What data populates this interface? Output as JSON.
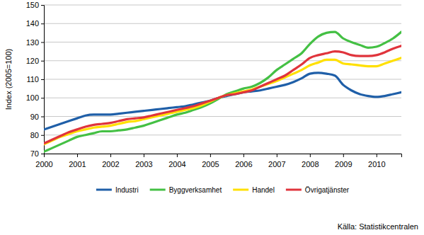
{
  "chart_data": {
    "type": "line",
    "y_label": "Index (2005=100)",
    "source": "Källa: Statistikcentralen",
    "x": [
      2000,
      2000.25,
      2000.5,
      2000.75,
      2001,
      2001.25,
      2001.5,
      2001.75,
      2002,
      2002.25,
      2002.5,
      2002.75,
      2003,
      2003.25,
      2003.5,
      2003.75,
      2004,
      2004.25,
      2004.5,
      2004.75,
      2005,
      2005.25,
      2005.5,
      2005.75,
      2006,
      2006.25,
      2006.5,
      2006.75,
      2007,
      2007.25,
      2007.5,
      2007.75,
      2008,
      2008.25,
      2008.5,
      2008.75,
      2009,
      2009.25,
      2009.5,
      2009.75,
      2010,
      2010.25,
      2010.5,
      2010.75
    ],
    "series": [
      {
        "name": "Industri",
        "color": "#1f5fa8",
        "values": [
          83,
          84.5,
          86,
          87.5,
          89,
          90.5,
          91,
          91,
          91,
          91.5,
          92,
          92.5,
          93,
          93.5,
          94,
          94.5,
          95,
          95.5,
          96.5,
          97.5,
          98.5,
          100,
          101,
          102,
          103,
          103.5,
          104,
          105,
          106,
          107,
          108.5,
          110.5,
          113,
          113.5,
          113,
          112,
          107,
          104,
          102,
          101,
          100.5,
          101,
          102,
          103
        ]
      },
      {
        "name": "Byggverksamhet",
        "color": "#44c044",
        "values": [
          71,
          73,
          75,
          77,
          79,
          80,
          81,
          82,
          82,
          82.5,
          83,
          84,
          85,
          86.5,
          88,
          89.5,
          91,
          92,
          93.5,
          95,
          97,
          99.5,
          102,
          103.5,
          105,
          106,
          108,
          111,
          115,
          118,
          121,
          124,
          129,
          133,
          135,
          135.5,
          132,
          130,
          128.5,
          127,
          127.5,
          129.5,
          132,
          135.5
        ]
      },
      {
        "name": "Handel",
        "color": "#ffe000",
        "values": [
          75,
          77,
          79,
          80.5,
          82,
          83,
          84,
          84.5,
          85,
          86,
          87,
          87.5,
          88.5,
          89.5,
          90.5,
          91.5,
          92.5,
          93.5,
          94.5,
          96,
          98,
          100,
          101.5,
          102.5,
          103.5,
          104.5,
          106,
          107.5,
          109,
          111,
          113,
          115,
          117.5,
          119,
          120.5,
          120.5,
          118.5,
          118,
          117.5,
          117,
          117,
          118.5,
          120,
          121.5
        ]
      },
      {
        "name": "Övrigatjänster",
        "color": "#e0343c",
        "values": [
          75.5,
          77.5,
          79.5,
          81.5,
          83,
          84.5,
          85.5,
          86,
          86.5,
          87.5,
          88.5,
          89,
          89.5,
          90.5,
          91.5,
          92.5,
          93.5,
          94.5,
          95.5,
          97,
          98.5,
          100,
          101.5,
          102,
          103,
          104,
          106,
          108,
          110,
          112,
          115,
          118,
          121.5,
          123,
          124,
          125,
          124.5,
          123,
          122.5,
          122.5,
          123,
          124.5,
          126.5,
          128
        ]
      }
    ],
    "xlim": [
      2000,
      2010.75
    ],
    "xticks": [
      2000,
      2001,
      2002,
      2003,
      2004,
      2005,
      2006,
      2007,
      2008,
      2009,
      2010
    ],
    "ylim": [
      70,
      150
    ],
    "yticks": [
      70,
      80,
      90,
      100,
      110,
      120,
      130,
      140,
      150
    ],
    "grid": true,
    "legend": "bottom"
  }
}
